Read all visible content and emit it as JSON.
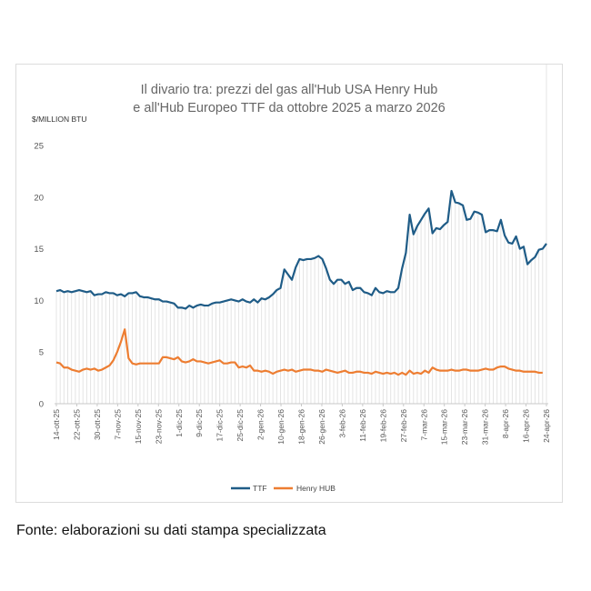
{
  "source_note": "Fonte: elaborazioni su dati stampa specializzata",
  "chart_data": {
    "type": "line",
    "title_lines": [
      "Il divario tra: prezzi del gas all'Hub USA Henry Hub",
      "e all'Hub Europeo TTF da ottobre 2025 a marzo 2026"
    ],
    "ylabel": "$/MILLION BTU",
    "xlabel": "",
    "ylim": [
      0,
      25
    ],
    "yticks": [
      0,
      5,
      10,
      15,
      20,
      25
    ],
    "grid": false,
    "legend_position": "bottom",
    "x_ticks": [
      "14-ott-25",
      "22-ott-25",
      "30-ott-25",
      "7-nov-25",
      "15-nov-25",
      "23-nov-25",
      "1-dic-25",
      "9-dic-25",
      "17-dic-25",
      "25-dic-25",
      "2-gen-26",
      "10-gen-26",
      "18-gen-26",
      "26-gen-26",
      "3-feb-26",
      "11-feb-26",
      "19-feb-26",
      "27-feb-26",
      "7-mar-26",
      "15-mar-26",
      "23-mar-26",
      "31-mar-26",
      "8-apr-26",
      "16-apr-26",
      "24-apr-26"
    ],
    "series": [
      {
        "name": "TTF",
        "color": "#1f5c87",
        "values": [
          10.9,
          11.0,
          10.8,
          10.9,
          10.8,
          10.9,
          11.0,
          10.9,
          10.8,
          10.9,
          10.5,
          10.6,
          10.6,
          10.8,
          10.7,
          10.7,
          10.5,
          10.6,
          10.4,
          10.7,
          10.7,
          10.8,
          10.4,
          10.3,
          10.3,
          10.2,
          10.1,
          10.1,
          9.9,
          9.9,
          9.8,
          9.7,
          9.3,
          9.3,
          9.2,
          9.5,
          9.3,
          9.5,
          9.6,
          9.5,
          9.5,
          9.7,
          9.8,
          9.8,
          9.9,
          10.0,
          10.1,
          10.0,
          9.9,
          10.1,
          9.9,
          9.8,
          10.1,
          9.8,
          10.2,
          10.1,
          10.3,
          10.6,
          11.0,
          11.2,
          13.0,
          12.5,
          12.0,
          13.2,
          14.0,
          13.9,
          14.0,
          14.0,
          14.1,
          14.3,
          14.0,
          13.1,
          12.0,
          11.6,
          12.0,
          12.0,
          11.6,
          11.8,
          11.0,
          11.2,
          11.2,
          10.8,
          10.7,
          10.5,
          11.2,
          10.8,
          10.7,
          10.9,
          10.8,
          10.8,
          11.2,
          13.1,
          14.6,
          18.3,
          16.4,
          17.2,
          17.8,
          18.4,
          18.9,
          16.5,
          17.0,
          16.9,
          17.3,
          17.6,
          20.6,
          19.5,
          19.4,
          19.2,
          17.8,
          17.9,
          18.6,
          18.5,
          18.3,
          16.6,
          16.8,
          16.8,
          16.7,
          17.8,
          16.3,
          15.6,
          15.5,
          16.2,
          15.0,
          15.2,
          13.5,
          13.9,
          14.2,
          14.9,
          15.0,
          15.5
        ]
      },
      {
        "name": "Henry HUB",
        "color": "#ed7d31",
        "values": [
          4.0,
          3.9,
          3.5,
          3.5,
          3.3,
          3.2,
          3.1,
          3.3,
          3.4,
          3.3,
          3.4,
          3.2,
          3.3,
          3.5,
          3.7,
          4.2,
          5.0,
          6.0,
          7.2,
          4.4,
          3.9,
          3.8,
          3.9,
          3.9,
          3.9,
          3.9,
          3.9,
          3.9,
          4.5,
          4.5,
          4.4,
          4.3,
          4.5,
          4.1,
          4.0,
          4.1,
          4.3,
          4.1,
          4.1,
          4.0,
          3.9,
          4.0,
          4.1,
          4.2,
          3.9,
          3.9,
          4.0,
          4.0,
          3.5,
          3.6,
          3.5,
          3.7,
          3.2,
          3.2,
          3.1,
          3.2,
          3.1,
          2.9,
          3.1,
          3.2,
          3.3,
          3.2,
          3.3,
          3.1,
          3.2,
          3.3,
          3.3,
          3.3,
          3.2,
          3.2,
          3.1,
          3.3,
          3.2,
          3.1,
          3.0,
          3.1,
          3.2,
          3.0,
          3.0,
          3.1,
          3.1,
          3.0,
          3.0,
          2.9,
          3.1,
          3.0,
          2.9,
          3.0,
          2.9,
          3.0,
          2.8,
          3.0,
          2.8,
          3.2,
          2.9,
          3.0,
          2.9,
          3.2,
          3.0,
          3.5,
          3.3,
          3.2,
          3.2,
          3.2,
          3.3,
          3.2,
          3.2,
          3.3,
          3.3,
          3.2,
          3.2,
          3.2,
          3.3,
          3.4,
          3.3,
          3.3,
          3.5,
          3.6,
          3.6,
          3.4,
          3.3,
          3.2,
          3.2,
          3.1,
          3.1,
          3.1,
          3.1,
          3.0,
          3.0
        ]
      }
    ]
  }
}
